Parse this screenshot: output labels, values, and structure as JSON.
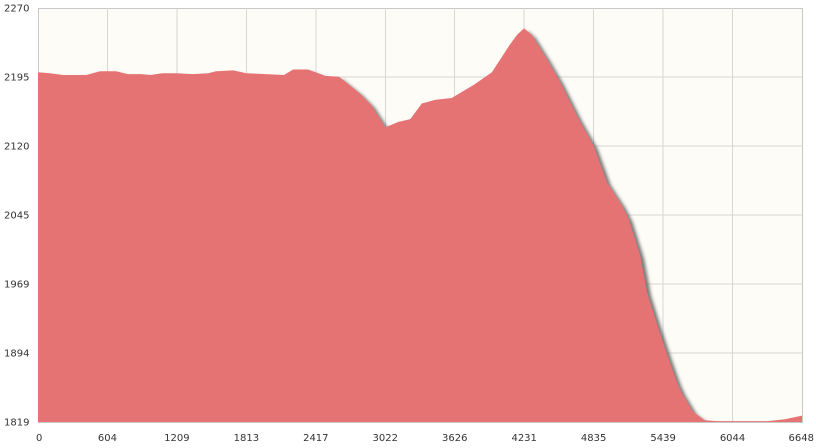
{
  "chart_data": {
    "type": "area",
    "title": "",
    "xlabel": "",
    "ylabel": "",
    "xlim": [
      0,
      6648
    ],
    "ylim": [
      1819,
      2270
    ],
    "x_ticks": [
      "0",
      "604",
      "1209",
      "1813",
      "2417",
      "3022",
      "3626",
      "4231",
      "4835",
      "5439",
      "6044",
      "6648"
    ],
    "y_ticks": [
      "2270",
      "2195",
      "2120",
      "2045",
      "1969",
      "1894",
      "1819"
    ],
    "grid": true,
    "legend": "none",
    "colors": {
      "fill": "#e57373",
      "shadow": "#7a7a7a",
      "background": "#fdfcf7",
      "grid": "#d6d6d6"
    },
    "series": [
      {
        "x": [
          0,
          100,
          220,
          420,
          540,
          680,
          780,
          900,
          980,
          1080,
          1200,
          1350,
          1480,
          1550,
          1700,
          1810,
          1980,
          2140,
          2220,
          2350,
          2500,
          2620,
          2800,
          2900,
          3022,
          3140,
          3240,
          3340,
          3460,
          3600,
          3720,
          3800,
          3950,
          4100,
          4170,
          4231,
          4300,
          4420,
          4540,
          4700,
          4835,
          4950,
          5080,
          5140,
          5240,
          5300,
          5400,
          5480,
          5560,
          5600,
          5700,
          5800,
          5900,
          6100,
          6350,
          6500,
          6648
        ],
        "y": [
          2200,
          2199,
          2197,
          2197,
          2201,
          2201,
          2198,
          2198,
          2197,
          2199,
          2199,
          2198,
          2199,
          2201,
          2202,
          2199,
          2198,
          2197,
          2203,
          2203,
          2196,
          2195,
          2177,
          2164,
          2140,
          2146,
          2149,
          2166,
          2170,
          2172,
          2181,
          2187,
          2200,
          2229,
          2241,
          2248,
          2240,
          2216,
          2190,
          2150,
          2120,
          2080,
          2055,
          2040,
          2000,
          1960,
          1920,
          1890,
          1862,
          1851,
          1830,
          1821,
          1820,
          1820,
          1820,
          1822,
          1826
        ]
      }
    ]
  }
}
